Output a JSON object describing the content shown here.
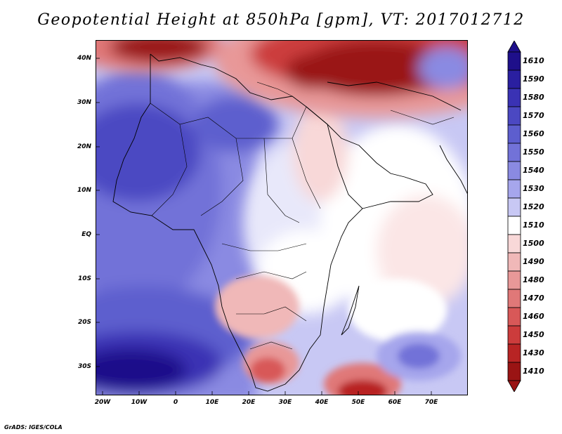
{
  "title": "Geopotential Height at 850hPa [gpm], VT: 2017012712",
  "y_ticks": [
    "40N",
    "30N",
    "20N",
    "10N",
    "EQ",
    "10S",
    "20S",
    "30S"
  ],
  "x_ticks": [
    "20W",
    "10W",
    "0",
    "10E",
    "20E",
    "30E",
    "40E",
    "50E",
    "60E",
    "70E"
  ],
  "colorbar": {
    "labels": [
      "1610",
      "1590",
      "1580",
      "1570",
      "1560",
      "1550",
      "1540",
      "1530",
      "1520",
      "1510",
      "1500",
      "1490",
      "1480",
      "1470",
      "1460",
      "1450",
      "1430",
      "1410"
    ],
    "colors": [
      "#1e0f8a",
      "#2a1fa0",
      "#3a32b4",
      "#4b48c2",
      "#5d5ece",
      "#7272d8",
      "#8a8ae2",
      "#a6a6ec",
      "#c8c8f4",
      "#ffffff",
      "#f8d8d8",
      "#f0b8b8",
      "#e89898",
      "#e07878",
      "#d85858",
      "#cc3c3c",
      "#b82424",
      "#9a1414"
    ]
  },
  "footer": "GrADS: IGES/COLA"
}
